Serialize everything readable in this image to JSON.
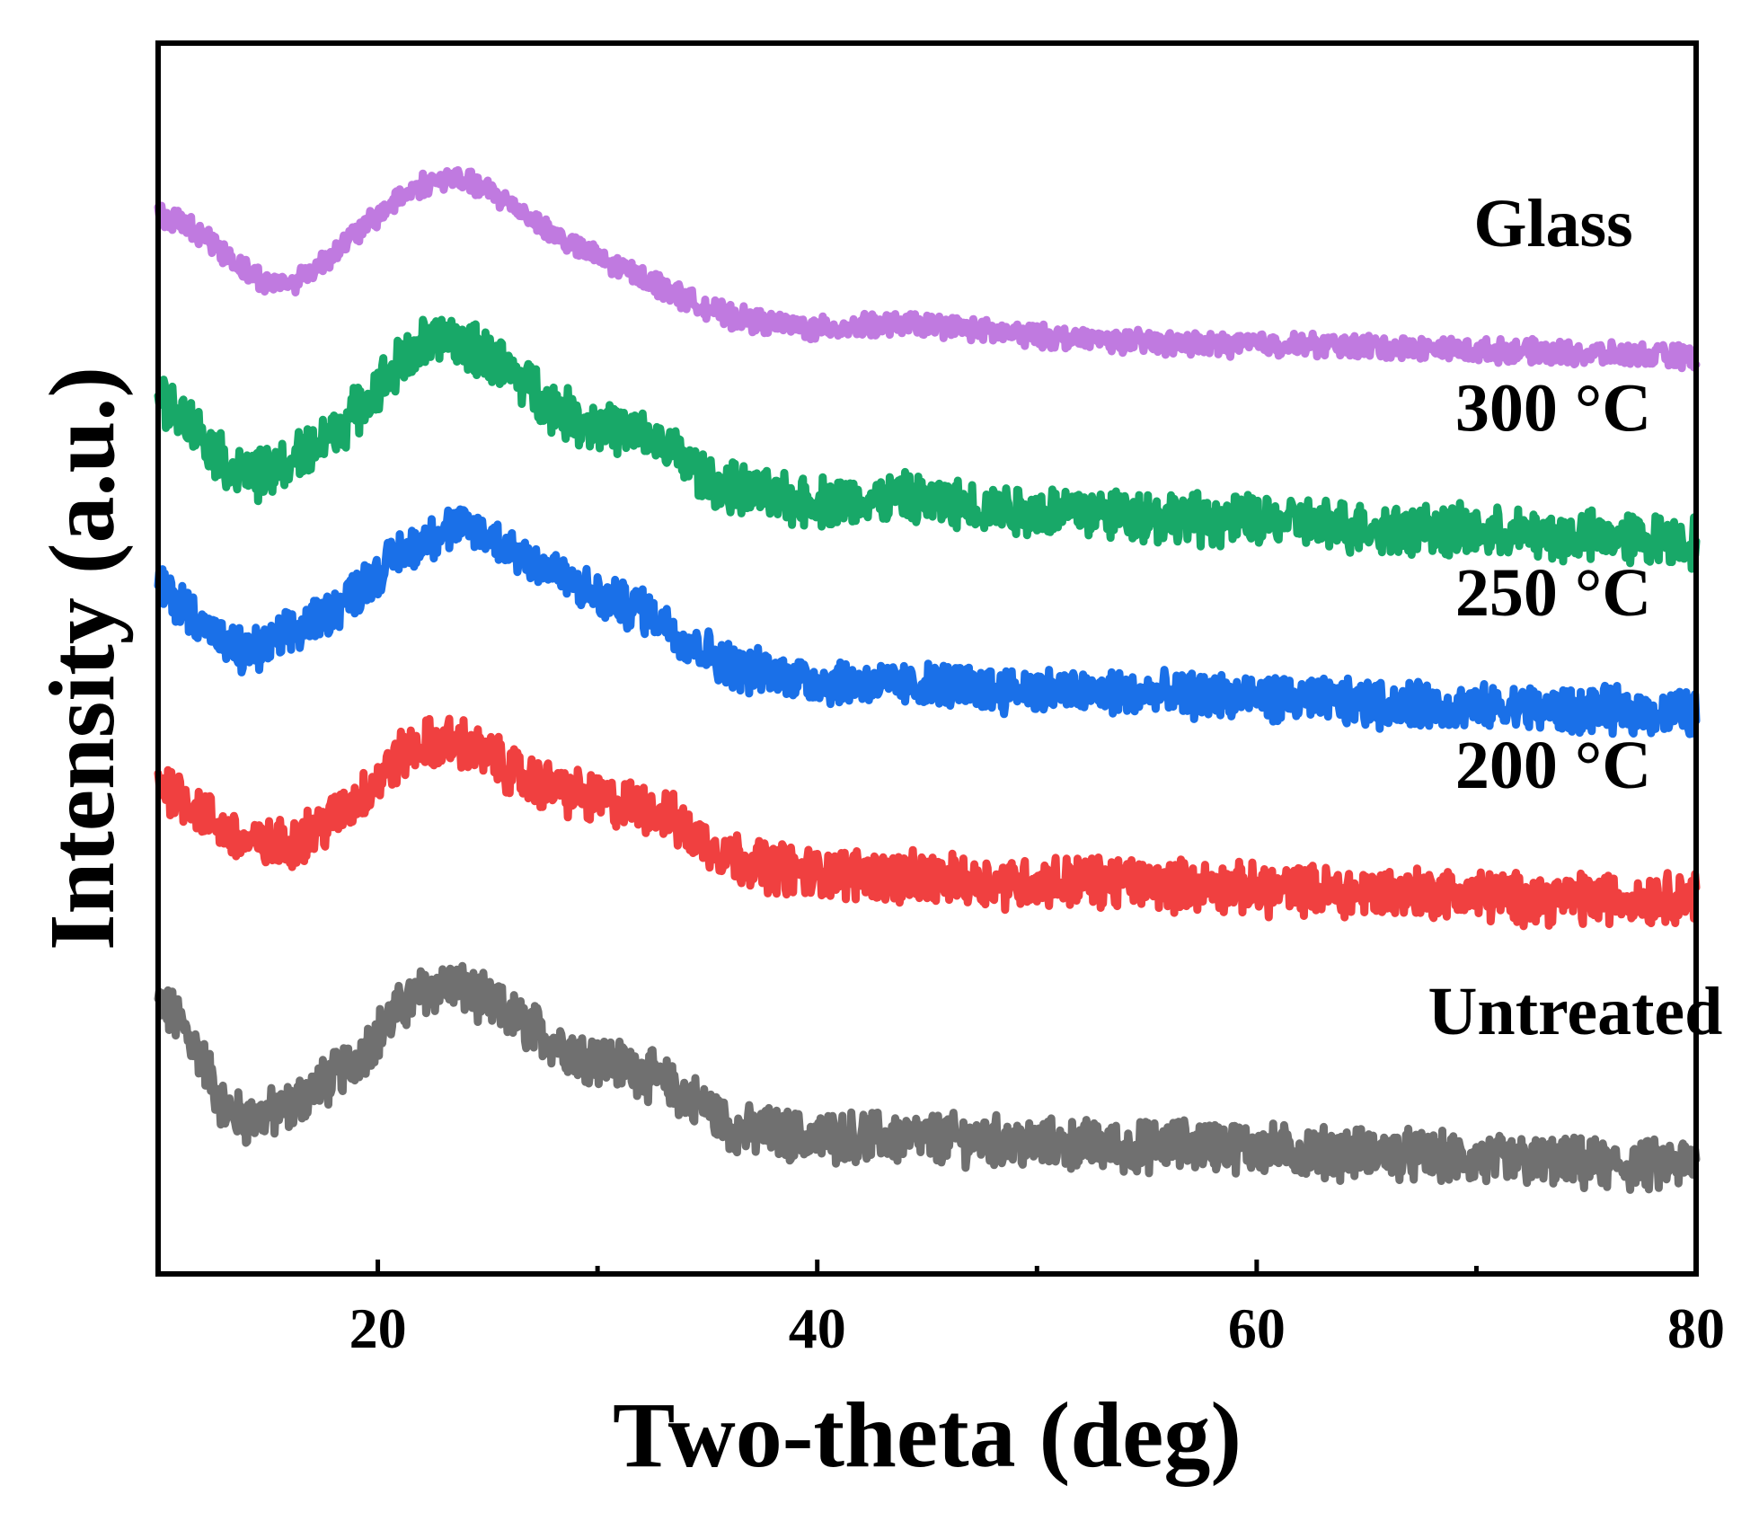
{
  "chart_data": {
    "type": "line",
    "title": "",
    "xlabel": "Two-theta (deg)",
    "ylabel": "Intensity (a.u.)",
    "xlim": [
      10,
      80
    ],
    "ylim": [
      0,
      10
    ],
    "xticks": [
      20,
      40,
      60,
      80
    ],
    "minor_xticks": [
      30,
      50,
      70
    ],
    "legend": "inline labels at right",
    "grid": false,
    "series": [
      {
        "name": "Untreated",
        "color": "#707070",
        "noise": 0.18,
        "points": [
          [
            10,
            2.2
          ],
          [
            11,
            2.05
          ],
          [
            12,
            1.75
          ],
          [
            13,
            1.35
          ],
          [
            14,
            1.25
          ],
          [
            15,
            1.3
          ],
          [
            16,
            1.35
          ],
          [
            17,
            1.5
          ],
          [
            18,
            1.6
          ],
          [
            19,
            1.75
          ],
          [
            20,
            1.95
          ],
          [
            21,
            2.15
          ],
          [
            22,
            2.3
          ],
          [
            23,
            2.35
          ],
          [
            24,
            2.3
          ],
          [
            25,
            2.2
          ],
          [
            26,
            2.1
          ],
          [
            27,
            2.0
          ],
          [
            28,
            1.9
          ],
          [
            29,
            1.8
          ],
          [
            30,
            1.75
          ],
          [
            31,
            1.7
          ],
          [
            32,
            1.65
          ],
          [
            33,
            1.55
          ],
          [
            34,
            1.45
          ],
          [
            35,
            1.35
          ],
          [
            36,
            1.2
          ],
          [
            37,
            1.15
          ],
          [
            38,
            1.15
          ],
          [
            39,
            1.12
          ],
          [
            40,
            1.1
          ],
          [
            42,
            1.12
          ],
          [
            44,
            1.1
          ],
          [
            46,
            1.1
          ],
          [
            48,
            1.08
          ],
          [
            50,
            1.05
          ],
          [
            52,
            1.05
          ],
          [
            54,
            1.02
          ],
          [
            56,
            1.05
          ],
          [
            58,
            1.05
          ],
          [
            60,
            1.02
          ],
          [
            62,
            1.0
          ],
          [
            64,
            0.98
          ],
          [
            66,
            0.98
          ],
          [
            68,
            0.95
          ],
          [
            70,
            0.92
          ],
          [
            72,
            0.92
          ],
          [
            74,
            0.9
          ],
          [
            76,
            0.88
          ],
          [
            78,
            0.88
          ],
          [
            80,
            0.9
          ]
        ]
      },
      {
        "name": "200 °C",
        "color": "#f04040",
        "noise": 0.18,
        "points": [
          [
            10,
            4.0
          ],
          [
            11,
            3.9
          ],
          [
            12,
            3.75
          ],
          [
            13,
            3.6
          ],
          [
            14,
            3.5
          ],
          [
            15,
            3.48
          ],
          [
            16,
            3.5
          ],
          [
            17,
            3.6
          ],
          [
            18,
            3.7
          ],
          [
            19,
            3.85
          ],
          [
            20,
            4.0
          ],
          [
            21,
            4.2
          ],
          [
            22,
            4.3
          ],
          [
            23,
            4.32
          ],
          [
            24,
            4.3
          ],
          [
            25,
            4.2
          ],
          [
            26,
            4.1
          ],
          [
            27,
            4.0
          ],
          [
            28,
            3.95
          ],
          [
            29,
            3.9
          ],
          [
            30,
            3.85
          ],
          [
            31,
            3.82
          ],
          [
            32,
            3.8
          ],
          [
            33,
            3.75
          ],
          [
            34,
            3.6
          ],
          [
            35,
            3.5
          ],
          [
            36,
            3.4
          ],
          [
            37,
            3.35
          ],
          [
            38,
            3.3
          ],
          [
            39,
            3.28
          ],
          [
            40,
            3.25
          ],
          [
            42,
            3.25
          ],
          [
            44,
            3.22
          ],
          [
            46,
            3.2
          ],
          [
            48,
            3.18
          ],
          [
            50,
            3.18
          ],
          [
            52,
            3.2
          ],
          [
            54,
            3.18
          ],
          [
            56,
            3.16
          ],
          [
            58,
            3.15
          ],
          [
            60,
            3.12
          ],
          [
            62,
            3.12
          ],
          [
            64,
            3.1
          ],
          [
            66,
            3.1
          ],
          [
            68,
            3.1
          ],
          [
            70,
            3.08
          ],
          [
            72,
            3.05
          ],
          [
            74,
            3.05
          ],
          [
            76,
            3.05
          ],
          [
            78,
            3.05
          ],
          [
            80,
            3.08
          ]
        ]
      },
      {
        "name": "250 °C",
        "color": "#1a70e8",
        "noise": 0.16,
        "points": [
          [
            10,
            5.6
          ],
          [
            11,
            5.45
          ],
          [
            12,
            5.3
          ],
          [
            13,
            5.1
          ],
          [
            14,
            5.05
          ],
          [
            15,
            5.1
          ],
          [
            16,
            5.2
          ],
          [
            17,
            5.3
          ],
          [
            18,
            5.4
          ],
          [
            19,
            5.55
          ],
          [
            20,
            5.7
          ],
          [
            21,
            5.85
          ],
          [
            22,
            5.95
          ],
          [
            23,
            6.05
          ],
          [
            24,
            6.05
          ],
          [
            25,
            6.0
          ],
          [
            26,
            5.9
          ],
          [
            27,
            5.8
          ],
          [
            28,
            5.7
          ],
          [
            29,
            5.6
          ],
          [
            30,
            5.5
          ],
          [
            31,
            5.45
          ],
          [
            32,
            5.4
          ],
          [
            33,
            5.3
          ],
          [
            34,
            5.15
          ],
          [
            35,
            5.05
          ],
          [
            36,
            4.95
          ],
          [
            37,
            4.9
          ],
          [
            38,
            4.88
          ],
          [
            39,
            4.85
          ],
          [
            40,
            4.82
          ],
          [
            42,
            4.8
          ],
          [
            44,
            4.78
          ],
          [
            46,
            4.78
          ],
          [
            48,
            4.75
          ],
          [
            50,
            4.75
          ],
          [
            52,
            4.72
          ],
          [
            54,
            4.72
          ],
          [
            56,
            4.7
          ],
          [
            58,
            4.7
          ],
          [
            60,
            4.68
          ],
          [
            62,
            4.66
          ],
          [
            64,
            4.65
          ],
          [
            66,
            4.62
          ],
          [
            68,
            4.62
          ],
          [
            70,
            4.6
          ],
          [
            72,
            4.6
          ],
          [
            74,
            4.58
          ],
          [
            76,
            4.58
          ],
          [
            78,
            4.56
          ],
          [
            80,
            4.56
          ]
        ]
      },
      {
        "name": "300 °C",
        "color": "#18a868",
        "noise": 0.18,
        "points": [
          [
            10,
            7.1
          ],
          [
            11,
            7.0
          ],
          [
            12,
            6.8
          ],
          [
            13,
            6.6
          ],
          [
            14,
            6.5
          ],
          [
            15,
            6.5
          ],
          [
            16,
            6.6
          ],
          [
            17,
            6.7
          ],
          [
            18,
            6.85
          ],
          [
            19,
            7.0
          ],
          [
            20,
            7.2
          ],
          [
            21,
            7.4
          ],
          [
            22,
            7.55
          ],
          [
            23,
            7.6
          ],
          [
            24,
            7.55
          ],
          [
            25,
            7.45
          ],
          [
            26,
            7.35
          ],
          [
            27,
            7.2
          ],
          [
            28,
            7.05
          ],
          [
            29,
            6.95
          ],
          [
            30,
            6.9
          ],
          [
            31,
            6.85
          ],
          [
            32,
            6.8
          ],
          [
            33,
            6.75
          ],
          [
            34,
            6.6
          ],
          [
            35,
            6.45
          ],
          [
            36,
            6.38
          ],
          [
            37,
            6.35
          ],
          [
            38,
            6.3
          ],
          [
            39,
            6.28
          ],
          [
            40,
            6.28
          ],
          [
            42,
            6.28
          ],
          [
            44,
            6.3
          ],
          [
            46,
            6.25
          ],
          [
            48,
            6.22
          ],
          [
            50,
            6.2
          ],
          [
            52,
            6.2
          ],
          [
            54,
            6.18
          ],
          [
            56,
            6.15
          ],
          [
            58,
            6.12
          ],
          [
            60,
            6.12
          ],
          [
            62,
            6.1
          ],
          [
            64,
            6.08
          ],
          [
            66,
            6.05
          ],
          [
            68,
            6.05
          ],
          [
            70,
            6.02
          ],
          [
            72,
            6.0
          ],
          [
            74,
            6.0
          ],
          [
            76,
            5.98
          ],
          [
            78,
            5.97
          ],
          [
            80,
            5.95
          ]
        ]
      },
      {
        "name": "Glass",
        "color": "#c07ae0",
        "noise": 0.08,
        "points": [
          [
            10,
            8.6
          ],
          [
            11,
            8.55
          ],
          [
            12,
            8.45
          ],
          [
            13,
            8.3
          ],
          [
            14,
            8.15
          ],
          [
            15,
            8.05
          ],
          [
            16,
            8.05
          ],
          [
            17,
            8.15
          ],
          [
            18,
            8.3
          ],
          [
            19,
            8.45
          ],
          [
            20,
            8.6
          ],
          [
            21,
            8.75
          ],
          [
            22,
            8.85
          ],
          [
            23,
            8.9
          ],
          [
            24,
            8.88
          ],
          [
            25,
            8.8
          ],
          [
            26,
            8.7
          ],
          [
            27,
            8.58
          ],
          [
            28,
            8.45
          ],
          [
            29,
            8.35
          ],
          [
            30,
            8.25
          ],
          [
            31,
            8.18
          ],
          [
            32,
            8.1
          ],
          [
            33,
            8.02
          ],
          [
            34,
            7.92
          ],
          [
            35,
            7.85
          ],
          [
            36,
            7.78
          ],
          [
            37,
            7.75
          ],
          [
            38,
            7.72
          ],
          [
            39,
            7.7
          ],
          [
            40,
            7.68
          ],
          [
            42,
            7.7
          ],
          [
            44,
            7.72
          ],
          [
            46,
            7.7
          ],
          [
            48,
            7.65
          ],
          [
            50,
            7.62
          ],
          [
            52,
            7.6
          ],
          [
            54,
            7.58
          ],
          [
            56,
            7.56
          ],
          [
            58,
            7.55
          ],
          [
            60,
            7.56
          ],
          [
            62,
            7.55
          ],
          [
            64,
            7.54
          ],
          [
            66,
            7.53
          ],
          [
            68,
            7.52
          ],
          [
            70,
            7.5
          ],
          [
            72,
            7.5
          ],
          [
            74,
            7.48
          ],
          [
            76,
            7.47
          ],
          [
            78,
            7.46
          ],
          [
            80,
            7.45
          ]
        ]
      }
    ],
    "annotations": [
      {
        "text": "Glass",
        "series": "Glass",
        "x": 73.5,
        "y": 8.35
      },
      {
        "text": "300 °C",
        "series": "300 °C",
        "x": 73.5,
        "y": 6.85
      },
      {
        "text": "250 °C",
        "series": "250 °C",
        "x": 73.5,
        "y": 5.35
      },
      {
        "text": "200 °C",
        "series": "200 °C",
        "x": 73.5,
        "y": 3.95
      },
      {
        "text": "Untreated",
        "series": "Untreated",
        "x": 74.5,
        "y": 1.95
      }
    ]
  }
}
